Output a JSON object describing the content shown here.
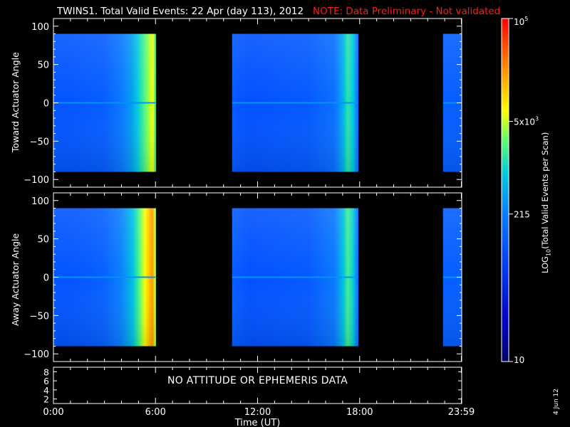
{
  "title": {
    "main": "TWINS1. Total Valid Events: 22 Apr (day 113), 2012",
    "note": "NOTE: Data Preliminary - Not validated",
    "note_color": "#ff1a1a"
  },
  "no_data_message": "NO ATTITUDE OR EPHEMERIS DATA",
  "date_stamp": "4 Jun 12",
  "chart_data": [
    {
      "type": "heatmap",
      "name": "toward",
      "ylabel": "Toward Actuator Angle",
      "ylim": [
        -110,
        110
      ],
      "yticks": [
        100,
        50,
        0,
        -50,
        -100
      ],
      "data_yrange": [
        -90,
        90
      ],
      "xlim_hours": [
        0,
        24
      ],
      "coverage_hours": [
        [
          0,
          6.0
        ],
        [
          10.5,
          17.9
        ],
        [
          22.9,
          24
        ]
      ],
      "color_level_scale": "0 = 10 events (navy), 0.43 = 215 (blue), 0.7 = 5x10^3 (yellow), 1 = 10^5 (red)",
      "profile": {
        "hours": [
          0,
          1,
          2,
          3,
          4,
          4.6,
          5.0,
          5.4,
          5.8,
          5.95,
          6.0,
          10.5,
          11.5,
          13,
          15,
          16.5,
          17.0,
          17.3,
          17.6,
          17.9,
          22.9,
          24
        ],
        "levels": [
          0.34,
          0.34,
          0.35,
          0.36,
          0.42,
          0.48,
          0.56,
          0.64,
          0.72,
          0.7,
          0.34,
          0.35,
          0.33,
          0.34,
          0.35,
          0.4,
          0.5,
          0.6,
          0.55,
          0.4,
          0.36,
          0.36
        ]
      }
    },
    {
      "type": "heatmap",
      "name": "away",
      "ylabel": "Away Actuator Angle",
      "ylim": [
        -110,
        110
      ],
      "yticks": [
        100,
        50,
        0,
        -50,
        -100
      ],
      "data_yrange": [
        -90,
        90
      ],
      "xlim_hours": [
        0,
        24
      ],
      "coverage_hours": [
        [
          0,
          6.0
        ],
        [
          10.5,
          17.9
        ],
        [
          22.9,
          24
        ]
      ],
      "color_level_scale": "0 = 10 events (navy), 0.43 = 215 (blue), 0.7 = 5x10^3 (yellow), 1 = 10^5 (red)",
      "profile": {
        "hours": [
          0,
          1,
          2,
          3,
          4,
          4.6,
          5.0,
          5.4,
          5.8,
          5.95,
          6.0,
          10.5,
          11.5,
          13,
          15,
          16.5,
          17.0,
          17.3,
          17.6,
          17.9,
          22.9,
          24
        ],
        "levels": [
          0.34,
          0.34,
          0.35,
          0.37,
          0.44,
          0.52,
          0.62,
          0.74,
          0.84,
          0.78,
          0.34,
          0.36,
          0.33,
          0.34,
          0.35,
          0.42,
          0.52,
          0.62,
          0.56,
          0.4,
          0.36,
          0.36
        ]
      }
    },
    {
      "type": "line",
      "name": "ephemeris",
      "yticks": [
        8,
        6,
        4,
        2
      ],
      "ylim": [
        1,
        9
      ]
    }
  ],
  "xaxis": {
    "label": "Time (UT)",
    "tick_hours": [
      0,
      6,
      12,
      18,
      23.98
    ],
    "tick_labels": [
      "0:00",
      "6:00",
      "12:00",
      "18:00",
      "23:59"
    ]
  },
  "colorbar": {
    "label_pre": "LOG",
    "label_sub": "10",
    "label_post": "(Total Valid Events per Scan)",
    "ticks": [
      {
        "base": "10",
        "exp": "5",
        "level": 1.0
      },
      {
        "base": "5x10",
        "exp": "3",
        "level": 0.7
      },
      {
        "base": "215",
        "exp": "",
        "level": 0.43
      },
      {
        "base": "10",
        "exp": "",
        "level": 0.0
      }
    ]
  }
}
